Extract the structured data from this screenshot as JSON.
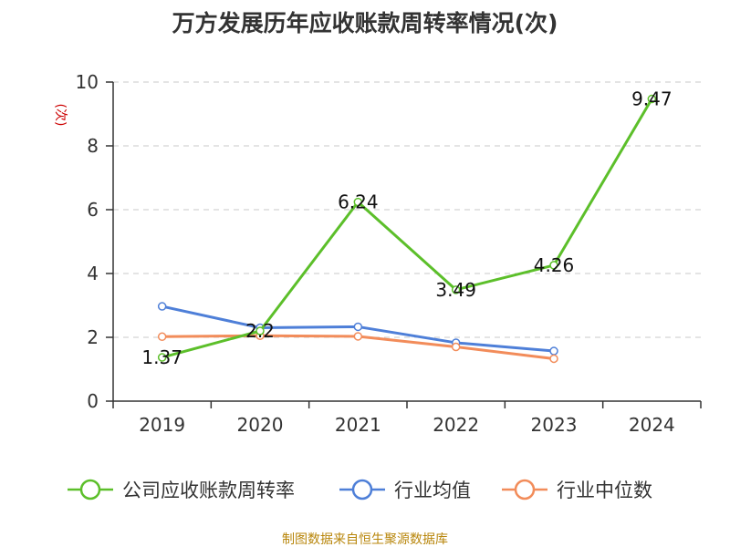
{
  "chart_data": {
    "type": "line",
    "title": "万方发展历年应收账款周转率情况(次)",
    "ylabel": "(次)",
    "categories": [
      "2019",
      "2020",
      "2021",
      "2022",
      "2023",
      "2024"
    ],
    "ylim": [
      0,
      10
    ],
    "yticks": [
      0,
      2,
      4,
      6,
      8,
      10
    ],
    "grid": true,
    "legend_position": "bottom",
    "series": [
      {
        "name": "公司应收账款周转率",
        "color": "#5cbf2a",
        "values": [
          1.37,
          2.2,
          6.24,
          3.49,
          4.26,
          9.47
        ],
        "labels": [
          "1.37",
          "2.2",
          "6.24",
          "3.49",
          "4.26",
          "9.47"
        ]
      },
      {
        "name": "行业均值",
        "color": "#4e7fd8",
        "values": [
          2.97,
          2.3,
          2.33,
          1.83,
          1.57,
          null
        ]
      },
      {
        "name": "行业中位数",
        "color": "#f28c5a",
        "values": [
          2.02,
          2.05,
          2.03,
          1.7,
          1.33,
          null
        ]
      }
    ],
    "source": "制图数据来自恒生聚源数据库"
  }
}
